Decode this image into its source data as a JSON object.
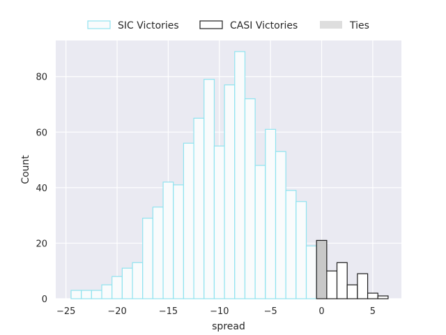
{
  "chart_data": {
    "type": "bar",
    "title": "",
    "xlabel": "spread",
    "ylabel": "Count",
    "xlim": [
      -26,
      7.8
    ],
    "ylim": [
      0,
      93
    ],
    "xticks": [
      -25,
      -20,
      -15,
      -10,
      -5,
      0,
      5
    ],
    "xtick_labels": [
      "−25",
      "−20",
      "−15",
      "−10",
      "−5",
      "0",
      "5"
    ],
    "yticks": [
      0,
      20,
      40,
      60,
      80
    ],
    "ytick_labels": [
      "0",
      "20",
      "40",
      "60",
      "80"
    ],
    "grid": true,
    "legend_position": "top-center",
    "bin_width": 1,
    "series": [
      {
        "name": "SIC Victories",
        "edge_color": "#8fe3ef",
        "fill_color": "#f9fbfc",
        "bins": [
          {
            "x": -24,
            "count": 3
          },
          {
            "x": -23,
            "count": 3
          },
          {
            "x": -22,
            "count": 3
          },
          {
            "x": -21,
            "count": 5
          },
          {
            "x": -20,
            "count": 8
          },
          {
            "x": -19,
            "count": 11
          },
          {
            "x": -18,
            "count": 13
          },
          {
            "x": -17,
            "count": 29
          },
          {
            "x": -16,
            "count": 33
          },
          {
            "x": -15,
            "count": 42
          },
          {
            "x": -14,
            "count": 41
          },
          {
            "x": -13,
            "count": 56
          },
          {
            "x": -12,
            "count": 65
          },
          {
            "x": -11,
            "count": 79
          },
          {
            "x": -10,
            "count": 55
          },
          {
            "x": -9,
            "count": 77
          },
          {
            "x": -8,
            "count": 89
          },
          {
            "x": -7,
            "count": 72
          },
          {
            "x": -6,
            "count": 48
          },
          {
            "x": -5,
            "count": 61
          },
          {
            "x": -4,
            "count": 53
          },
          {
            "x": -3,
            "count": 39
          },
          {
            "x": -2,
            "count": 35
          },
          {
            "x": -1,
            "count": 19
          }
        ]
      },
      {
        "name": "CASI Victories",
        "edge_color": "#1a1a1a",
        "fill_color": "#ffffff",
        "bins": [
          {
            "x": 1,
            "count": 10
          },
          {
            "x": 2,
            "count": 13
          },
          {
            "x": 3,
            "count": 5
          },
          {
            "x": 4,
            "count": 9
          },
          {
            "x": 5,
            "count": 2
          },
          {
            "x": 6,
            "count": 1
          }
        ]
      },
      {
        "name": "Ties",
        "edge_color": "#1a1a1a",
        "fill_color": "#c8c8c8",
        "legend_fill": "#dedede",
        "bins": [
          {
            "x": 0,
            "count": 21
          }
        ]
      }
    ]
  }
}
